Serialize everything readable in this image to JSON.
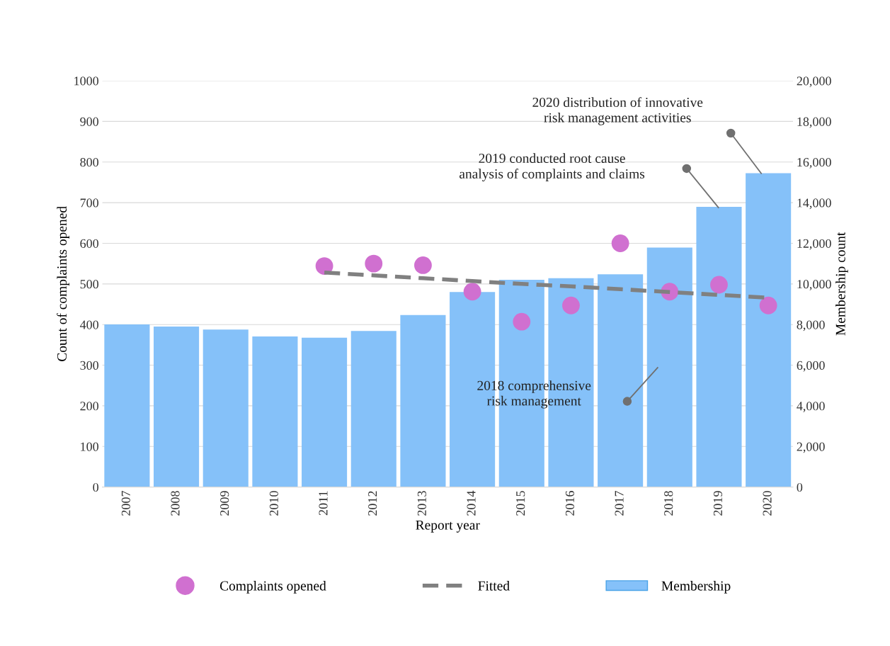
{
  "chart_data": {
    "type": "bar",
    "categories": [
      "2007",
      "2008",
      "2009",
      "2010",
      "2011",
      "2012",
      "2013",
      "2014",
      "2015",
      "2016",
      "2017",
      "2018",
      "2019",
      "2020"
    ],
    "series": [
      {
        "name": "Complaints opened",
        "type": "scatter",
        "marker": "circle",
        "color": "#d070d0",
        "values": [
          null,
          null,
          null,
          null,
          544,
          550,
          546,
          481,
          407,
          447,
          600,
          481,
          498,
          447
        ]
      },
      {
        "name": "Fitted",
        "type": "line",
        "line_style": "dashed",
        "color": "#808080",
        "values": [
          null,
          null,
          null,
          null,
          528,
          521,
          514,
          507,
          500,
          494,
          487,
          480,
          473,
          466
        ]
      },
      {
        "name": "Membership",
        "axis": "y2",
        "color": "#85c1f9",
        "values": [
          8010,
          7900,
          7750,
          7410,
          7350,
          7680,
          8470,
          9600,
          10200,
          10280,
          10470,
          11790,
          13790,
          15450
        ]
      }
    ],
    "xlabel": "Report year",
    "ylabel": "Count of complaints opened",
    "y2label": "Membership count",
    "ylim": [
      0,
      1000
    ],
    "yticks": [
      0,
      100,
      200,
      300,
      400,
      500,
      600,
      700,
      800,
      900,
      1000
    ],
    "y2lim": [
      0,
      20000
    ],
    "y2ticks": [
      0,
      {
        "value": 2000,
        "label": "2,000"
      },
      {
        "value": 4000,
        "label": "4,000"
      },
      {
        "value": 6000,
        "label": "6,000"
      },
      {
        "value": 8000,
        "label": "8,000"
      },
      {
        "value": 10000,
        "label": "10,000"
      },
      {
        "value": 12000,
        "label": "12,000"
      },
      {
        "value": 14000,
        "label": "14,000"
      },
      {
        "value": 16000,
        "label": "16,000"
      },
      {
        "value": 18000,
        "label": "18,000"
      },
      {
        "value": 20000,
        "label": "20,000"
      }
    ],
    "annotations": [
      "2020 distribution of innovative\nrisk management activities",
      "2019 conducted root cause\nanalysis of complaints and claims",
      "2018 comprehensive\nrisk management"
    ],
    "grid": "y",
    "legend": "bottom"
  }
}
